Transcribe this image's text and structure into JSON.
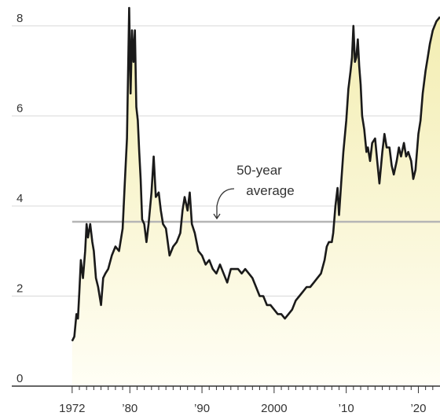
{
  "chart_data": {
    "type": "area",
    "title": "",
    "xlabel": "",
    "ylabel": "",
    "xlim": [
      1971.8,
      2023
    ],
    "ylim": [
      0,
      8.4
    ],
    "grid": true,
    "y_ticks": [
      0,
      2,
      4,
      6,
      8
    ],
    "y_tick_labels": [
      "0",
      "2",
      "4",
      "6",
      "8"
    ],
    "x_ticks": [
      1972,
      1980,
      1990,
      2000,
      2010,
      2020
    ],
    "x_tick_labels": [
      "1972",
      "’80",
      "’90",
      "2000",
      "’10",
      "’20"
    ],
    "colors": {
      "line": "#1a1a1a",
      "fill_top": "#f3edb0",
      "fill_bottom": "#fffef5",
      "average": "#b5b5b5",
      "grid": "#d9d9d9",
      "axis": "#333333"
    },
    "average": {
      "value": 3.65,
      "label_line1": "50-year",
      "label_line2": "average"
    },
    "series": [
      {
        "x": [
          1972,
          1972.3,
          1972.6,
          1972.8,
          1973.0,
          1973.2,
          1973.5,
          1973.8,
          1974.0,
          1974.2,
          1974.5,
          1974.8,
          1975.0,
          1975.3,
          1975.6,
          1976.0,
          1976.3,
          1976.6,
          1977.0,
          1977.5,
          1978.0,
          1978.5,
          1979.0,
          1979.3,
          1979.6,
          1979.9,
          1980.1,
          1980.3,
          1980.5,
          1980.7,
          1980.9,
          1981.1,
          1981.3,
          1981.5,
          1981.7,
          1982.0,
          1982.3,
          1982.6,
          1983.0,
          1983.3,
          1983.6,
          1984.0,
          1984.3,
          1984.6,
          1985.0,
          1985.5,
          1986.0,
          1986.5,
          1987.0,
          1987.3,
          1987.6,
          1988.0,
          1988.3,
          1988.6,
          1989.0,
          1989.5,
          1990.0,
          1990.5,
          1991.0,
          1991.5,
          1992.0,
          1992.5,
          1993.0,
          1993.5,
          1994.0,
          1994.5,
          1995.0,
          1995.5,
          1996.0,
          1996.5,
          1997.0,
          1997.5,
          1998.0,
          1998.5,
          1999.0,
          1999.5,
          2000.0,
          2000.5,
          2001.0,
          2001.5,
          2002.0,
          2002.5,
          2003.0,
          2003.5,
          2004.0,
          2004.5,
          2005.0,
          2005.5,
          2006.0,
          2006.5,
          2007.0,
          2007.3,
          2007.6,
          2008.0,
          2008.2,
          2008.5,
          2008.8,
          2009.0,
          2009.3,
          2009.6,
          2010.0,
          2010.3,
          2010.6,
          2010.8,
          2011.0,
          2011.2,
          2011.4,
          2011.6,
          2011.8,
          2012.0,
          2012.2,
          2012.5,
          2012.8,
          2013.0,
          2013.3,
          2013.6,
          2014.0,
          2014.3,
          2014.6,
          2015.0,
          2015.3,
          2015.6,
          2016.0,
          2016.3,
          2016.6,
          2017.0,
          2017.3,
          2017.6,
          2018.0,
          2018.3,
          2018.6,
          2019.0,
          2019.3,
          2019.6,
          2020.0,
          2020.3,
          2020.6,
          2021.0,
          2021.3,
          2021.6,
          2022.0,
          2022.5,
          2023.0
        ],
        "values": [
          1.0,
          1.1,
          1.6,
          1.5,
          2.1,
          2.8,
          2.4,
          3.0,
          3.6,
          3.3,
          3.6,
          3.2,
          3.0,
          2.4,
          2.2,
          1.8,
          2.4,
          2.5,
          2.6,
          2.9,
          3.1,
          3.0,
          3.5,
          4.5,
          5.5,
          8.4,
          6.5,
          7.9,
          7.2,
          7.9,
          6.2,
          5.9,
          5.2,
          4.6,
          3.7,
          3.6,
          3.2,
          3.6,
          4.3,
          5.1,
          4.2,
          4.3,
          3.9,
          3.6,
          3.5,
          2.9,
          3.1,
          3.2,
          3.4,
          3.9,
          4.2,
          3.9,
          4.3,
          3.6,
          3.4,
          3.0,
          2.9,
          2.7,
          2.8,
          2.6,
          2.5,
          2.7,
          2.5,
          2.3,
          2.6,
          2.6,
          2.6,
          2.5,
          2.6,
          2.5,
          2.4,
          2.2,
          2.0,
          2.0,
          1.8,
          1.8,
          1.7,
          1.6,
          1.6,
          1.5,
          1.6,
          1.7,
          1.9,
          2.0,
          2.1,
          2.2,
          2.2,
          2.3,
          2.4,
          2.5,
          2.8,
          3.1,
          3.2,
          3.2,
          3.4,
          4.0,
          4.4,
          3.8,
          4.5,
          5.2,
          5.9,
          6.6,
          7.0,
          7.3,
          8.0,
          7.2,
          7.3,
          7.7,
          7.1,
          6.7,
          6.0,
          5.7,
          5.2,
          5.3,
          5.0,
          5.4,
          5.5,
          5.0,
          4.5,
          5.2,
          5.6,
          5.3,
          5.3,
          4.9,
          4.7,
          5.0,
          5.3,
          5.1,
          5.4,
          5.1,
          5.2,
          5.0,
          4.6,
          4.8,
          5.6,
          5.9,
          6.5,
          7.0,
          7.3,
          7.6,
          7.9,
          8.1,
          8.2
        ]
      }
    ]
  }
}
